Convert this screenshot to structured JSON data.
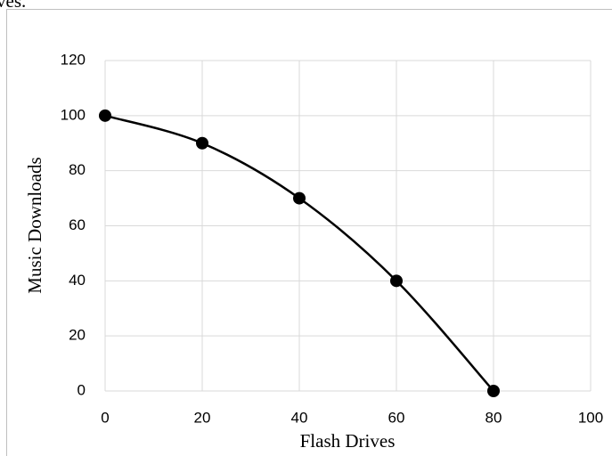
{
  "caption": "ves.",
  "chart_data": {
    "type": "line",
    "x": [
      0,
      20,
      40,
      60,
      80
    ],
    "values": [
      100,
      90,
      70,
      40,
      0
    ],
    "color": "#000000",
    "smooth": true,
    "xlabel": "Flash Drives",
    "ylabel": "Music Downloads",
    "xlim": [
      0,
      100
    ],
    "xticks": [
      0,
      20,
      40,
      60,
      80,
      100
    ],
    "ylim": [
      0,
      120
    ],
    "yticks": [
      0,
      20,
      40,
      60,
      80,
      100,
      120
    ],
    "grid": true
  }
}
